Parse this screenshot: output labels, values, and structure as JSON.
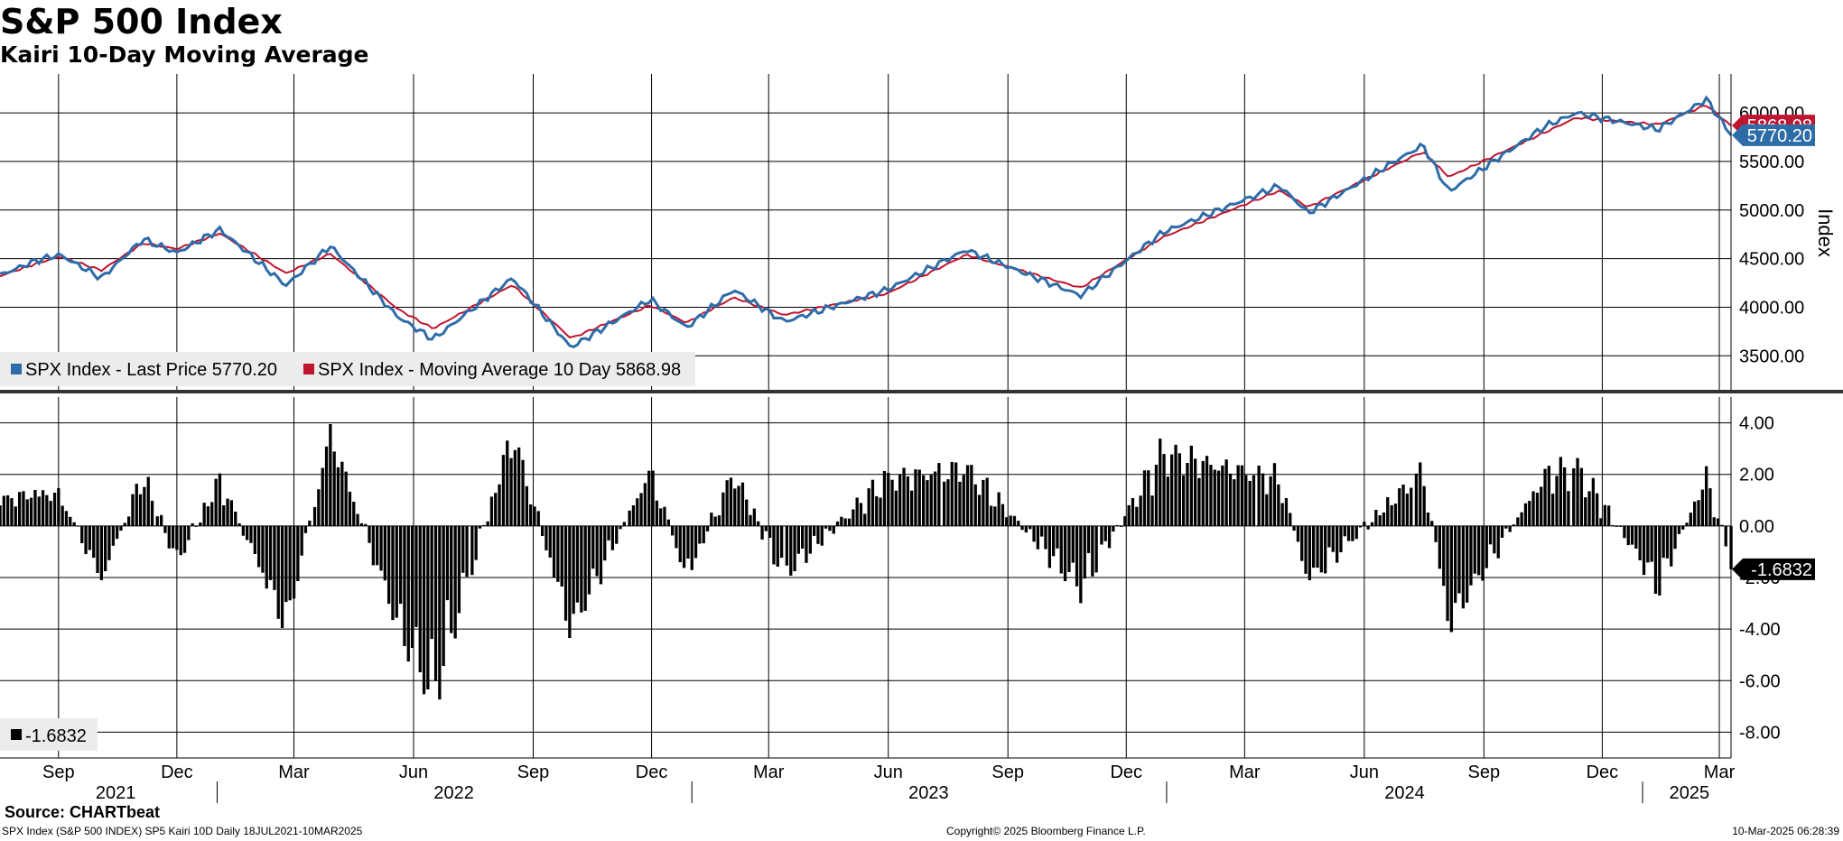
{
  "title": "S&P 500 Index",
  "subtitle": "Kairi 10-Day Moving Average",
  "source": "Source: CHARTbeat",
  "footer": {
    "left": "SPX Index (S&P 500 INDEX) SP5 Kairi 10D  Daily 18JUL2021-10MAR2025",
    "center": "Copyright© 2025 Bloomberg Finance L.P.",
    "right": "10-Mar-2025 06:28:39"
  },
  "colors": {
    "price": "#2e6ca8",
    "ma": "#c0152f",
    "bars": "#000000"
  },
  "chart_data": [
    {
      "type": "line",
      "ylabel": "Index",
      "ylim": [
        3150,
        6400
      ],
      "yticks": [
        "3500.00",
        "4000.00",
        "4500.00",
        "5000.00",
        "5500.00",
        "6000.00"
      ],
      "legend_position": "bottom-left",
      "x_range": [
        "2021-07-18",
        "2025-03-10"
      ],
      "last_value_labels": [
        "5770.20",
        "5868.98"
      ],
      "series": [
        {
          "name": "SPX Index - Last Price 5770.20",
          "x": [
            "2021-07-18",
            "2021-08-15",
            "2021-09-02",
            "2021-10-04",
            "2021-11-05",
            "2021-12-01",
            "2022-01-03",
            "2022-02-23",
            "2022-03-29",
            "2022-05-20",
            "2022-06-16",
            "2022-08-16",
            "2022-09-30",
            "2022-11-30",
            "2022-12-28",
            "2023-02-02",
            "2023-03-13",
            "2023-05-31",
            "2023-07-31",
            "2023-10-27",
            "2023-12-29",
            "2024-03-28",
            "2024-04-19",
            "2024-07-16",
            "2024-08-05",
            "2024-10-18",
            "2024-11-11",
            "2025-01-13",
            "2025-02-19",
            "2025-03-10"
          ],
          "values": [
            4330,
            4480,
            4540,
            4300,
            4700,
            4560,
            4800,
            4225,
            4630,
            3900,
            3670,
            4300,
            3585,
            4080,
            3790,
            4180,
            3850,
            4180,
            4590,
            4120,
            4770,
            5250,
            4970,
            5670,
            5190,
            5860,
            6000,
            5830,
            6140,
            5770
          ]
        },
        {
          "name": "SPX Index - Moving Average 10 Day 5868.98",
          "x": [
            "2021-07-18",
            "2021-08-15",
            "2021-09-02",
            "2021-10-04",
            "2021-11-05",
            "2021-12-01",
            "2022-01-03",
            "2022-02-23",
            "2022-03-29",
            "2022-05-20",
            "2022-06-16",
            "2022-08-16",
            "2022-09-30",
            "2022-11-30",
            "2022-12-28",
            "2023-02-02",
            "2023-03-13",
            "2023-05-31",
            "2023-07-31",
            "2023-10-27",
            "2023-12-29",
            "2024-03-28",
            "2024-04-19",
            "2024-07-16",
            "2024-08-05",
            "2024-10-18",
            "2024-11-11",
            "2025-01-13",
            "2025-02-19",
            "2025-03-10"
          ],
          "values": [
            4320,
            4450,
            4520,
            4380,
            4660,
            4600,
            4760,
            4350,
            4550,
            3980,
            3780,
            4230,
            3680,
            4020,
            3840,
            4100,
            3920,
            4140,
            4540,
            4200,
            4720,
            5200,
            5030,
            5600,
            5340,
            5800,
            5950,
            5880,
            6080,
            5869
          ]
        }
      ]
    },
    {
      "type": "bar",
      "ylim": [
        -9,
        5
      ],
      "yticks": [
        "-8.00",
        "-6.00",
        "-4.00",
        "-2.00",
        "0.00",
        "2.00",
        "4.00"
      ],
      "legend_position": "bottom-left",
      "last_value_label": "-1.6832",
      "series": [
        {
          "name": "-1.6832",
          "x": [
            "2021-07-18",
            "2021-08-15",
            "2021-09-02",
            "2021-10-04",
            "2021-11-05",
            "2021-12-01",
            "2022-01-03",
            "2022-02-23",
            "2022-03-29",
            "2022-05-20",
            "2022-06-16",
            "2022-08-16",
            "2022-09-30",
            "2022-11-30",
            "2022-12-28",
            "2023-02-02",
            "2023-03-13",
            "2023-05-31",
            "2023-07-31",
            "2023-10-27",
            "2023-12-29",
            "2024-03-28",
            "2024-04-19",
            "2024-07-16",
            "2024-08-05",
            "2024-10-18",
            "2024-11-11",
            "2025-01-13",
            "2025-02-19",
            "2025-03-10"
          ],
          "values": [
            1.2,
            1.5,
            1.4,
            -2.4,
            2.3,
            -1.6,
            2.1,
            -4.5,
            4.2,
            -4.5,
            -7.6,
            4.2,
            -4.7,
            2.5,
            -2.3,
            2.4,
            -2.2,
            2.2,
            2.6,
            -2.8,
            3.3,
            2.1,
            -2.5,
            2.5,
            -4.4,
            2.3,
            2.7,
            -2.7,
            2.2,
            -1.68
          ]
        }
      ]
    }
  ],
  "x_axis": {
    "month_labels": [
      {
        "label": "Sep",
        "date": "2021-09-01"
      },
      {
        "label": "Dec",
        "date": "2021-12-01"
      },
      {
        "label": "Mar",
        "date": "2022-03-01"
      },
      {
        "label": "Jun",
        "date": "2022-06-01"
      },
      {
        "label": "Sep",
        "date": "2022-09-01"
      },
      {
        "label": "Dec",
        "date": "2022-12-01"
      },
      {
        "label": "Mar",
        "date": "2023-03-01"
      },
      {
        "label": "Jun",
        "date": "2023-06-01"
      },
      {
        "label": "Sep",
        "date": "2023-09-01"
      },
      {
        "label": "Dec",
        "date": "2023-12-01"
      },
      {
        "label": "Mar",
        "date": "2024-03-01"
      },
      {
        "label": "Jun",
        "date": "2024-06-01"
      },
      {
        "label": "Sep",
        "date": "2024-09-01"
      },
      {
        "label": "Dec",
        "date": "2024-12-01"
      },
      {
        "label": "Mar",
        "date": "2025-03-01"
      }
    ],
    "year_labels": [
      {
        "label": "2021",
        "date": "2021-10-15"
      },
      {
        "label": "2022",
        "date": "2022-07-02"
      },
      {
        "label": "2023",
        "date": "2023-07-02"
      },
      {
        "label": "2024",
        "date": "2024-07-02"
      },
      {
        "label": "2025",
        "date": "2025-02-06"
      }
    ],
    "year_boundaries": [
      "2022-01-01",
      "2023-01-01",
      "2024-01-01",
      "2025-01-01"
    ]
  }
}
